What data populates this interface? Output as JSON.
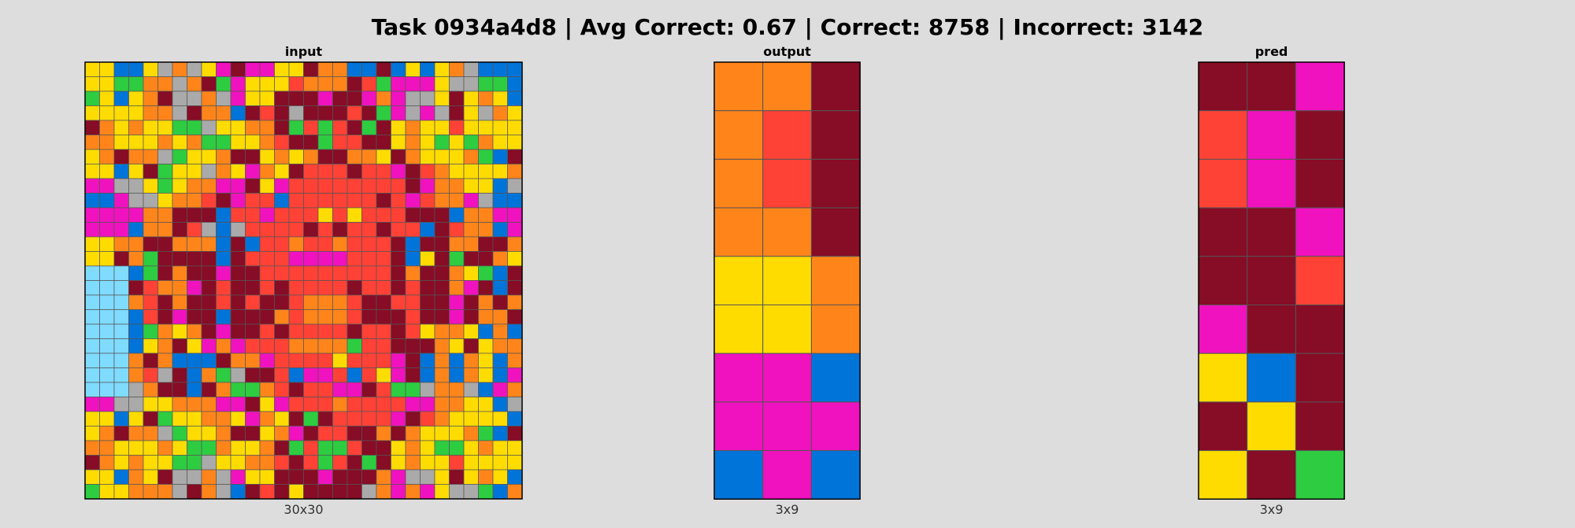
{
  "title": "Task 0934a4d8 | Avg Correct: 0.67 | Correct: 8758 | Incorrect: 3142",
  "palette": {
    "0": "#000000",
    "1": "#0074d9",
    "2": "#ff4136",
    "3": "#2ecc40",
    "4": "#ffdc00",
    "5": "#aaaaaa",
    "6": "#f012be",
    "7": "#ff851b",
    "8": "#7fdbff",
    "9": "#870c25"
  },
  "panels": [
    {
      "name": "input",
      "title": "input",
      "dims": "30x30",
      "rows": [
        "441145754696644977119141475111",
        "443377579364442777923666455331",
        "341479557564499969967655494741",
        "444477597719295999293656594574",
        "974744335447793232939474424444",
        "774447473344729932299474343744",
        "479775344799474799774974447319",
        "441493445746749222922692744447",
        "665543477669462222222296774415",
        "116554772962212222229262776511",
        "666677999122622242422299917766",
        "666177925152222929229221927716",
        "447799777191227227222919977997",
        "449739999192226666222914939974",
        "888139799699222222222979974319",
        "888927769299292222922929976919",
        "888729799292992777299229969797",
        "888129699199972777299929969779",
        "888137479699292222922924774171",
        "888147946762227777322999749477",
        "888797111977622224222691717417",
        "888725917359921662124691717416",
        "888579919733729226692335775167",
        "665544777669462227222266774415",
        "441493447746749392222692744441",
        "479775344799476922997974447319",
        "774447433744793233299474334744",
        "974744335447729232939474424444",
        "441749557564499969997655494741",
        "344777597519294999957676455317"
      ]
    },
    {
      "name": "output",
      "title": "output",
      "dims": "3x9",
      "rows": [
        "779",
        "729",
        "729",
        "779",
        "447",
        "447",
        "661",
        "666",
        "161"
      ]
    },
    {
      "name": "pred",
      "title": "pred",
      "dims": "3x9",
      "rows": [
        "996",
        "269",
        "269",
        "996",
        "992",
        "699",
        "419",
        "949",
        "493"
      ]
    }
  ]
}
